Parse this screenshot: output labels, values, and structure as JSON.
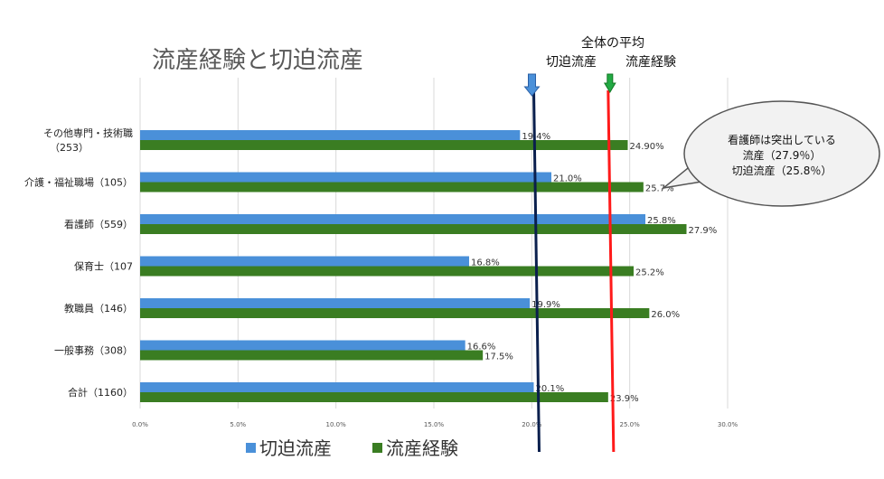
{
  "chart_data": {
    "type": "bar",
    "orientation": "horizontal",
    "title": "流産経験と切迫流産",
    "categories": [
      [
        "その他専門・技術職",
        "（253）"
      ],
      [
        "介護・福祉職場（105）"
      ],
      [
        "看護師（559）"
      ],
      [
        "保育士（107"
      ],
      [
        "教職員（146）"
      ],
      [
        "一般事務（308）"
      ],
      [
        "合計（1160）"
      ]
    ],
    "series": [
      {
        "name": "切迫流産",
        "color": "#4a90d9",
        "values": [
          19.4,
          21.0,
          25.8,
          16.8,
          19.9,
          16.6,
          20.1
        ],
        "labels": [
          "19.4%",
          "21.0%",
          "25.8%",
          "16.8%",
          "19.9%",
          "16.6%",
          "20.1%"
        ]
      },
      {
        "name": "流産経験",
        "color": "#3a7d22",
        "values": [
          24.9,
          25.7,
          27.9,
          25.2,
          26.0,
          17.5,
          23.9
        ],
        "labels": [
          "24.90%",
          "25.7%",
          "27.9%",
          "25.2%",
          "26.0%",
          "17.5%",
          "23.9%"
        ]
      }
    ],
    "xlim": [
      0,
      30
    ],
    "xticks": [
      0,
      5,
      10,
      15,
      20,
      25,
      30
    ],
    "xtick_labels": [
      "0.0%",
      "5.0%",
      "10.0%",
      "15.0%",
      "20.0%",
      "25.0%",
      "30.0%"
    ],
    "grid": "vertical",
    "legend": "bottom-left",
    "annotations": {
      "header": "全体の平均",
      "lines": [
        {
          "label": "切迫流産",
          "value": 20.1,
          "line_color": "#0a1f4d",
          "arrow_color": "#4a90d9"
        },
        {
          "label": "流産経験",
          "value": 23.9,
          "line_color": "#ff1a1a",
          "arrow_color": "#22aa44"
        }
      ],
      "callout": [
        "看護師は突出している",
        "流産（27.9％）",
        "切迫流産（25.8％）"
      ]
    }
  }
}
